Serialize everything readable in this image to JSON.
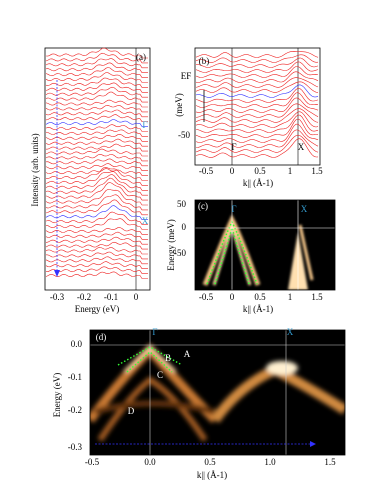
{
  "panels": [
    {
      "label": "(a)",
      "xlabel": "Energy (eV)",
      "ylabel": "Intensity (arb. units)",
      "xticks": [
        "-0.3",
        "-0.2",
        "-0.1",
        "0"
      ],
      "marks": [
        "Γ",
        "X"
      ]
    },
    {
      "label": "(b)",
      "xlabel": "k|| (Å-1)",
      "ylabel": "(meV)",
      "yticks": [
        "EF",
        "-50"
      ],
      "xticks": [
        "-0.5",
        "0",
        "0.5",
        "1",
        "1.5"
      ],
      "marks": [
        "Γ",
        "X"
      ]
    },
    {
      "label": "(c)",
      "xlabel": "k|| (Å-1)",
      "ylabel": "Energy (meV)",
      "yticks": [
        "50",
        "0",
        "-50"
      ],
      "xticks": [
        "-0.5",
        "0",
        "0.5",
        "1",
        "1.5"
      ],
      "marks": [
        "Γ",
        "X"
      ]
    },
    {
      "label": "(d)",
      "xlabel": "k|| (Å-1)",
      "ylabel": "Energy (eV)",
      "yticks": [
        "0.0",
        "-0.1",
        "-0.2",
        "-0.3"
      ],
      "xticks": [
        "-0.5",
        "0.0",
        "0.5",
        "1.0",
        "1.5"
      ],
      "marks": [
        "Γ",
        "X"
      ],
      "bands": [
        "A",
        "B",
        "C",
        "D"
      ]
    }
  ]
}
